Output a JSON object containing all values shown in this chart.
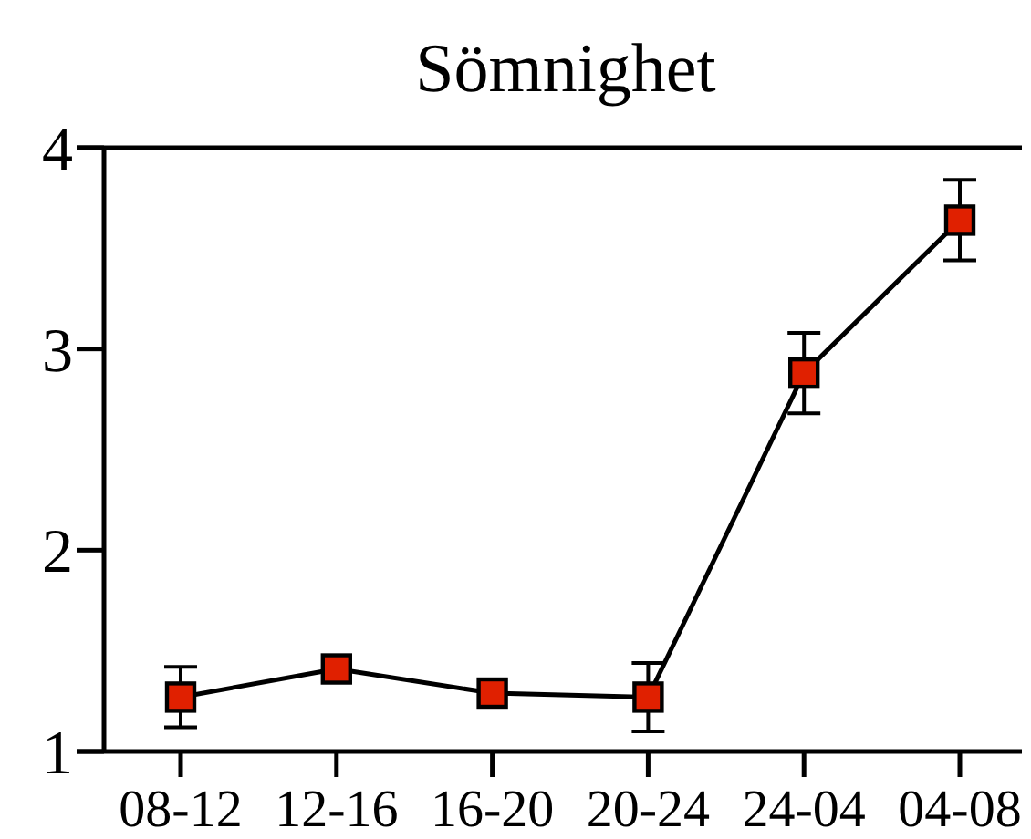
{
  "chart_data": {
    "type": "line",
    "title": "Sömnighet",
    "categories": [
      "08-12",
      "12-16",
      "16-20",
      "20-24",
      "24-04",
      "04-08"
    ],
    "series": [
      {
        "color": "#e02000",
        "values": [
          1.27,
          1.41,
          1.29,
          1.27,
          2.88,
          3.64
        ],
        "errors": [
          0.15,
          null,
          null,
          0.17,
          0.2,
          0.2
        ]
      }
    ],
    "ylim": [
      1,
      4
    ],
    "yticks": [
      1,
      2,
      3,
      4
    ],
    "grid": false,
    "marker": "square",
    "line_style": "solid"
  }
}
